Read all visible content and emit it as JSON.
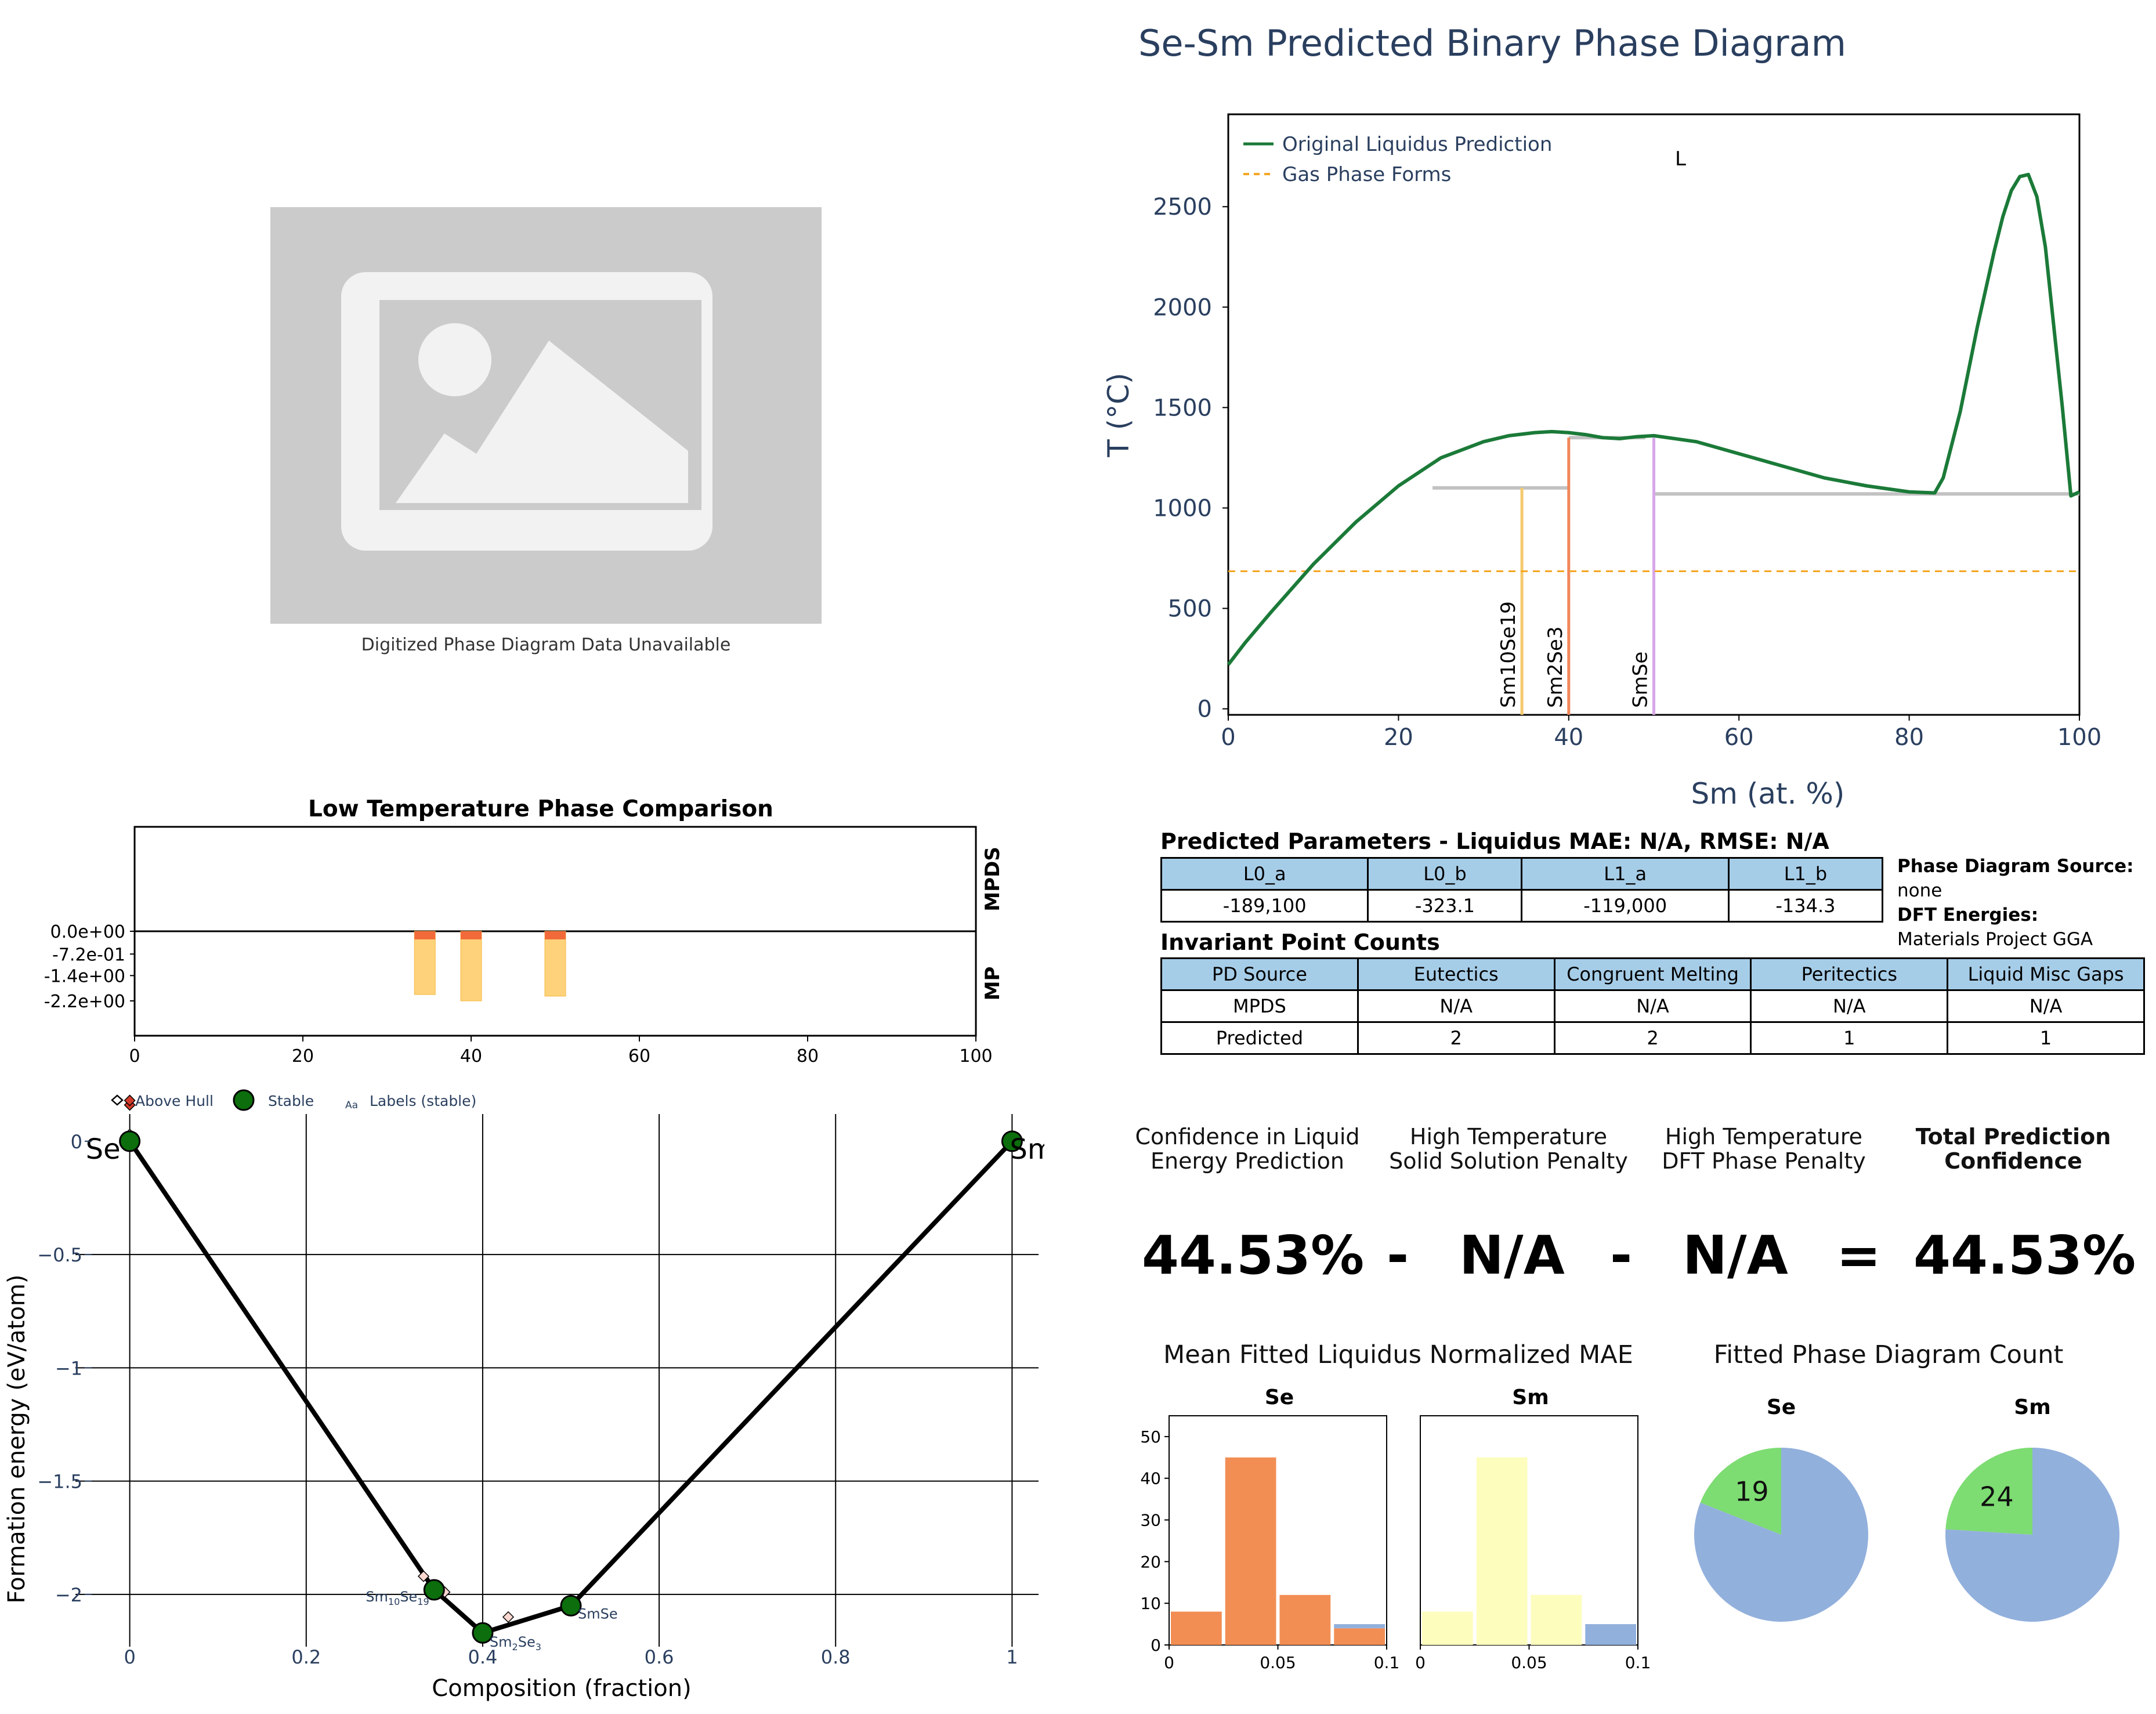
{
  "placeholder": {
    "caption": "Digitized Phase Diagram Data Unavailable"
  },
  "phase_diagram": {
    "title": "Se-Sm Predicted Binary Phase Diagram",
    "xlabel": "Sm (at. %)",
    "ylabel": "T (°C)",
    "legend": [
      "Original Liquidus Prediction",
      "Gas Phase Forms"
    ],
    "region_label": "L",
    "x_ticks": [
      "0",
      "20",
      "40",
      "60",
      "80",
      "100"
    ],
    "y_ticks": [
      "0",
      "500",
      "1000",
      "1500",
      "2000",
      "2500"
    ],
    "phase_labels": [
      "Sm10Se19",
      "Sm2Se3",
      "SmSe"
    ]
  },
  "ltpc": {
    "title": "Low Temperature Phase Comparison",
    "row_labels": [
      "MPDS",
      "MP"
    ],
    "y_ticks": [
      "0.0e+00",
      "-7.2e-01",
      "-1.4e+00",
      "-2.2e+00"
    ],
    "x_ticks": [
      "0",
      "20",
      "40",
      "60",
      "80",
      "100"
    ]
  },
  "hull": {
    "legend": [
      "Above Hull",
      "Stable",
      "Labels (stable)"
    ],
    "legend_glyph": "Aa",
    "xlabel": "Composition (fraction)",
    "ylabel": "Formation energy (eV/atom)",
    "x_ticks": [
      "0",
      "0.2",
      "0.4",
      "0.6",
      "0.8",
      "1"
    ],
    "y_ticks": [
      "0",
      "−0.5",
      "−1",
      "−1.5",
      "−2"
    ],
    "endpoints": [
      "Se",
      "Sm"
    ],
    "stable_labels": [
      {
        "base": "Sm",
        "sub1": "10",
        "mid": "Se",
        "sub2": "19"
      },
      {
        "base": "Sm",
        "sub1": "2",
        "mid": "Se",
        "sub2": "3"
      },
      {
        "base": "SmSe",
        "sub1": "",
        "mid": "",
        "sub2": ""
      }
    ]
  },
  "params": {
    "title": "Predicted Parameters - Liquidus MAE: N/A, RMSE: N/A",
    "headers": [
      "L0_a",
      "L0_b",
      "L1_a",
      "L1_b"
    ],
    "values": [
      "-189,100",
      "-323.1",
      "-119,000",
      "-134.3"
    ]
  },
  "source": {
    "pd_label": "Phase Diagram Source:",
    "pd_value": "none",
    "dft_label": "DFT Energies:",
    "dft_value": "Materials Project GGA"
  },
  "invariant": {
    "title": "Invariant Point Counts",
    "headers": [
      "PD Source",
      "Eutectics",
      "Congruent Melting",
      "Peritectics",
      "Liquid Misc Gaps"
    ],
    "rows": [
      [
        "MPDS",
        "N/A",
        "N/A",
        "N/A",
        "N/A"
      ],
      [
        "Predicted",
        "2",
        "2",
        "1",
        "1"
      ]
    ]
  },
  "confidence": {
    "labels": [
      [
        "Confidence in Liquid",
        "Energy Prediction"
      ],
      [
        "High Temperature",
        "Solid Solution Penalty"
      ],
      [
        "High Temperature",
        "DFT Phase Penalty"
      ],
      [
        "Total Prediction",
        "Confidence"
      ]
    ],
    "values": [
      "44.53%",
      "-",
      "N/A",
      "-",
      "N/A",
      "=",
      "44.53%"
    ]
  },
  "mae": {
    "title": "Mean Fitted Liquidus Normalized MAE",
    "panels": [
      "Se",
      "Sm"
    ],
    "x_ticks": [
      "0",
      "0.05",
      "0.1"
    ],
    "y_ticks": [
      "0",
      "10",
      "20",
      "30",
      "40",
      "50"
    ]
  },
  "count": {
    "title": "Fitted Phase Diagram Count",
    "panels": [
      "Se",
      "Sm"
    ]
  },
  "chart_data": [
    {
      "type": "line",
      "title": "Se-Sm Predicted Binary Phase Diagram",
      "xlabel": "Sm (at. %)",
      "ylabel": "T (°C)",
      "xlim": [
        0,
        100
      ],
      "ylim": [
        -30,
        2960
      ],
      "legend_placement": "top-left",
      "series": [
        {
          "name": "Original Liquidus Prediction",
          "color": "#1b7a38",
          "x": [
            0,
            2,
            5,
            10,
            15,
            20,
            25,
            30,
            33,
            36,
            38,
            40,
            42,
            44,
            46,
            48,
            50,
            55,
            60,
            65,
            70,
            75,
            80,
            83,
            84,
            86,
            88,
            90,
            91,
            92,
            93,
            94,
            95,
            96,
            98,
            99,
            100
          ],
          "y": [
            220,
            330,
            480,
            720,
            930,
            1110,
            1250,
            1330,
            1360,
            1375,
            1380,
            1375,
            1365,
            1350,
            1345,
            1355,
            1360,
            1330,
            1270,
            1210,
            1150,
            1110,
            1080,
            1075,
            1150,
            1480,
            1900,
            2280,
            2450,
            2580,
            2650,
            2660,
            2550,
            2300,
            1500,
            1060,
            1080
          ]
        },
        {
          "name": "Gas Phase Forms",
          "color": "#f5a623",
          "dashed": true,
          "x": [
            0,
            100
          ],
          "y": [
            685,
            685
          ]
        }
      ],
      "horizontal_segments": [
        {
          "x": [
            24,
            40
          ],
          "y": 1100
        },
        {
          "x": [
            40,
            49
          ],
          "y": 1350
        },
        {
          "x": [
            50,
            100
          ],
          "y": 1070
        }
      ],
      "compounds": [
        {
          "label": "Sm10Se19",
          "x": 34.5,
          "top": 1100,
          "color": "#f5c96b"
        },
        {
          "label": "Sm2Se3",
          "x": 40,
          "top": 1350,
          "color": "#f0865a"
        },
        {
          "label": "SmSe",
          "x": 50,
          "top": 1350,
          "color": "#d8a6ea"
        }
      ]
    },
    {
      "type": "bar",
      "title": "Low Temperature Phase Comparison",
      "xlim": [
        0,
        100
      ],
      "rows": [
        "MPDS",
        "MP"
      ],
      "bars_MP": [
        {
          "x": 34.5,
          "value": -2.0
        },
        {
          "x": 40,
          "value": -2.2
        },
        {
          "x": 50,
          "value": -2.05
        }
      ]
    },
    {
      "type": "scatter",
      "xlabel": "Composition (fraction)",
      "ylabel": "Formation energy (eV/atom)",
      "xlim": [
        -0.03,
        1.03
      ],
      "ylim": [
        -2.3,
        0.12
      ],
      "hull": [
        [
          0,
          0
        ],
        [
          0.345,
          -1.98
        ],
        [
          0.4,
          -2.17
        ],
        [
          0.5,
          -2.05
        ],
        [
          1,
          0
        ]
      ],
      "stable": [
        [
          0,
          0
        ],
        [
          0.345,
          -1.98
        ],
        [
          0.4,
          -2.17
        ],
        [
          0.5,
          -2.05
        ],
        [
          1,
          0
        ]
      ],
      "above_hull": [
        [
          0,
          0.03
        ],
        [
          0,
          0.16
        ],
        [
          0,
          0.18
        ],
        [
          0.333,
          -1.92
        ],
        [
          0.357,
          -1.99
        ],
        [
          0.429,
          -2.1
        ],
        [
          1,
          0.01
        ]
      ]
    },
    {
      "type": "bar",
      "title": "Se",
      "x": [
        0.0125,
        0.0375,
        0.0625,
        0.0875
      ],
      "series": [
        {
          "name": "",
          "color": "#f28e54",
          "values": [
            8,
            45,
            12,
            4
          ]
        },
        {
          "name": "",
          "color": "#92b0dc",
          "values": [
            0,
            0,
            0,
            1
          ]
        }
      ]
    },
    {
      "type": "bar",
      "title": "Sm",
      "x": [
        0.0125,
        0.0375,
        0.0625,
        0.0875
      ],
      "series": [
        {
          "name": "",
          "color": "#fdfdbe",
          "values": [
            8,
            45,
            12,
            0
          ]
        },
        {
          "name": "",
          "color": "#92b0dc",
          "values": [
            0,
            0,
            0,
            5
          ]
        }
      ]
    },
    {
      "type": "pie",
      "title": "Se",
      "slices": [
        {
          "label": "19",
          "value": 19,
          "color": "#7ddc72"
        },
        {
          "label": "",
          "value": 81,
          "color": "#92b0dc"
        }
      ]
    },
    {
      "type": "pie",
      "title": "Sm",
      "slices": [
        {
          "label": "24",
          "value": 24,
          "color": "#7ddc72"
        },
        {
          "label": "",
          "value": 76,
          "color": "#92b0dc"
        }
      ]
    }
  ]
}
